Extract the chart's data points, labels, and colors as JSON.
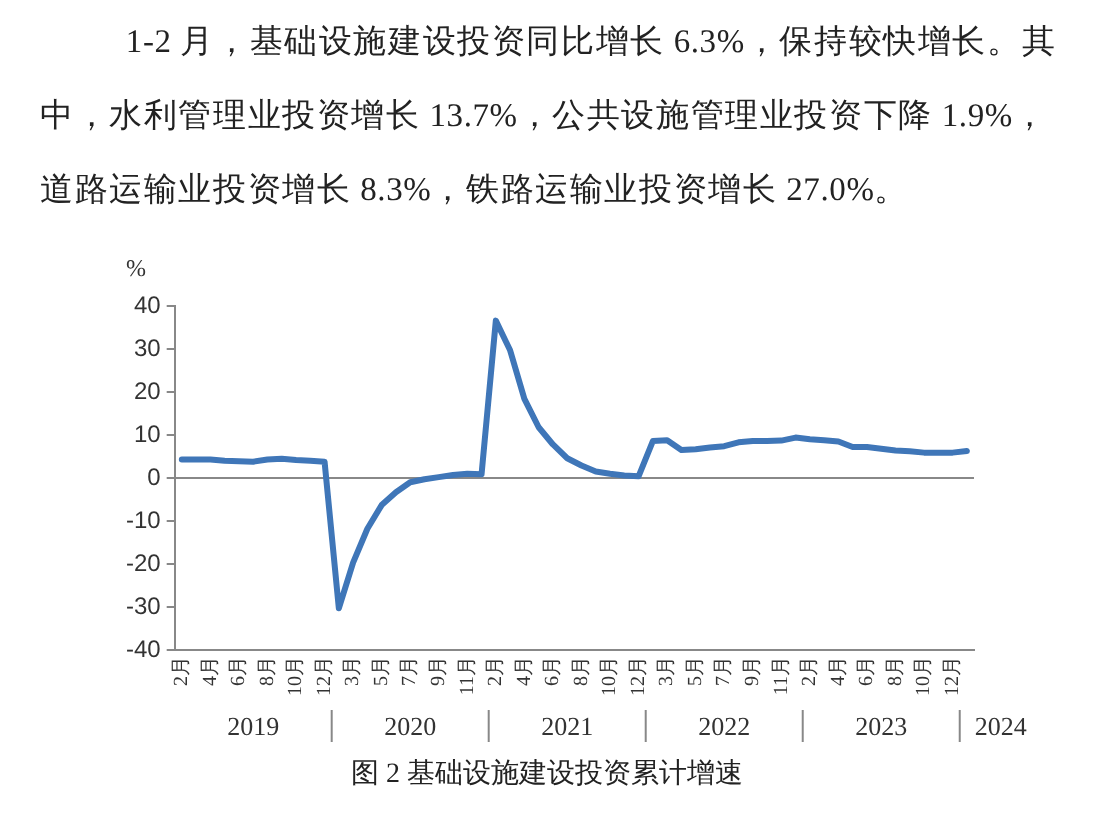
{
  "chart_data": {
    "type": "line",
    "title": "图 2 基础设施建设投资累计增速",
    "subtitle": "1-2 月，基础设施建设投资同比增长 6.3%，保持较快增长。其中，水利管理业投资增长 13.7%，公共设施管理业投资下降 1.9%，道路运输业投资增长 8.3%，铁路运输业投资增长 27.0%。",
    "ylabel": "%",
    "categories": [
      "2月",
      null,
      "4月",
      null,
      "6月",
      null,
      "8月",
      null,
      "10月",
      null,
      "12月",
      null,
      "3月",
      null,
      "5月",
      null,
      "7月",
      null,
      "9月",
      null,
      "11月",
      null,
      "2月",
      null,
      "4月",
      null,
      "6月",
      null,
      "8月",
      null,
      "10月",
      null,
      "12月",
      null,
      "3月",
      null,
      "5月",
      null,
      "7月",
      null,
      "9月",
      null,
      "11月",
      null,
      "2月",
      null,
      "4月",
      null,
      "6月",
      null,
      "8月",
      null,
      "10月",
      null,
      "12月",
      null
    ],
    "series": [
      {
        "color": "#3f76b8",
        "values": [
          4.3,
          4.3,
          4.3,
          4.0,
          3.9,
          3.8,
          4.3,
          4.5,
          4.2,
          4.0,
          3.8,
          -30.3,
          -19.7,
          -11.8,
          -6.3,
          -3.3,
          -1.0,
          -0.3,
          0.2,
          0.7,
          1.0,
          0.9,
          36.6,
          29.7,
          18.4,
          11.8,
          7.8,
          4.6,
          2.9,
          1.5,
          1.0,
          0.6,
          0.4,
          8.6,
          8.8,
          6.5,
          6.7,
          7.1,
          7.4,
          8.3,
          8.6,
          8.6,
          8.7,
          9.4,
          9.0,
          8.8,
          8.5,
          7.2,
          7.2,
          6.8,
          6.4,
          6.2,
          5.9,
          5.9,
          5.9,
          6.3
        ]
      }
    ],
    "ylim": [
      -40,
      40
    ],
    "yticks": [
      -40,
      -30,
      -20,
      -10,
      0,
      10,
      20,
      30,
      40
    ],
    "annotations": [
      "2019",
      "2020",
      "2021",
      "2022",
      "2023",
      "2024"
    ],
    "ref_lines": [
      {
        "axis": "y",
        "value": 0,
        "color": "#888888"
      }
    ],
    "grid": false,
    "legend": false,
    "marker": "none",
    "line_style": "solid"
  }
}
